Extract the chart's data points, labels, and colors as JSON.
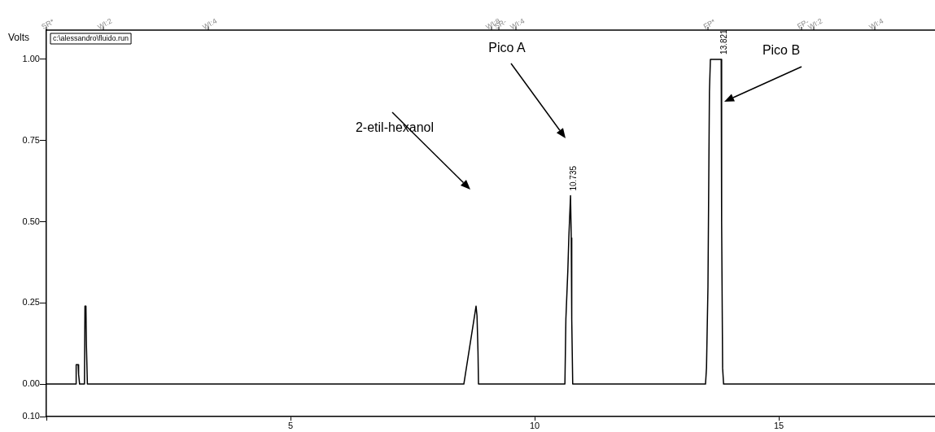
{
  "chart_data": {
    "type": "line",
    "ylabel": "Volts",
    "annotations": [
      "c:\\alessandro\\fluido.run",
      "2-etil-hexanol",
      "Pico A",
      "Pico B",
      {
        "text": "10.735",
        "x": 10.735,
        "y": 0.58
      },
      {
        "text": "13.821",
        "x": 13.821,
        "y": 1.0
      },
      "SR*",
      "WI:2",
      "WI:4",
      "WI:8",
      "SR-",
      "WI:4",
      "FP*",
      "FP-",
      "WI:2",
      "WI:4"
    ],
    "series": [
      {
        "color": "#000000",
        "x": [
          0,
          0.6,
          0.61,
          0.65,
          0.66,
          0.68,
          0.78,
          0.79,
          0.81,
          0.82,
          0.84,
          8.55,
          8.8,
          8.82,
          8.84,
          8.85,
          10.62,
          10.64,
          10.68,
          10.7,
          10.735,
          10.75,
          10.76,
          10.78,
          13.5,
          13.52,
          13.55,
          13.58,
          13.6,
          13.821,
          13.83,
          13.85,
          13.87,
          18.2
        ],
        "values": [
          0,
          0,
          0.06,
          0.06,
          0.03,
          0,
          0,
          0.24,
          0.24,
          0.12,
          0,
          0,
          0.24,
          0.21,
          0.1,
          0,
          0,
          0.2,
          0.35,
          0.45,
          0.58,
          0.45,
          0.2,
          0,
          0,
          0.05,
          0.3,
          0.9,
          1.0,
          1.0,
          0.5,
          0.05,
          0,
          0
        ]
      }
    ],
    "xlim": [
      0,
      18.2
    ],
    "xticks": [
      {
        "value": 0,
        "label": null
      },
      5,
      10,
      15
    ],
    "ylim": [
      -0.1,
      1.09
    ],
    "yticks": [
      {
        "value": -0.1,
        "label": "0.10"
      },
      {
        "value": 0,
        "label": "0.00"
      },
      {
        "value": 0.25,
        "label": "0.25"
      },
      {
        "value": 0.5,
        "label": "0.50"
      },
      {
        "value": 0.75,
        "label": "0.75"
      },
      {
        "value": 1,
        "label": "1.00"
      }
    ],
    "grid": false,
    "legend": false,
    "marker": "none",
    "line_style": "solid"
  }
}
